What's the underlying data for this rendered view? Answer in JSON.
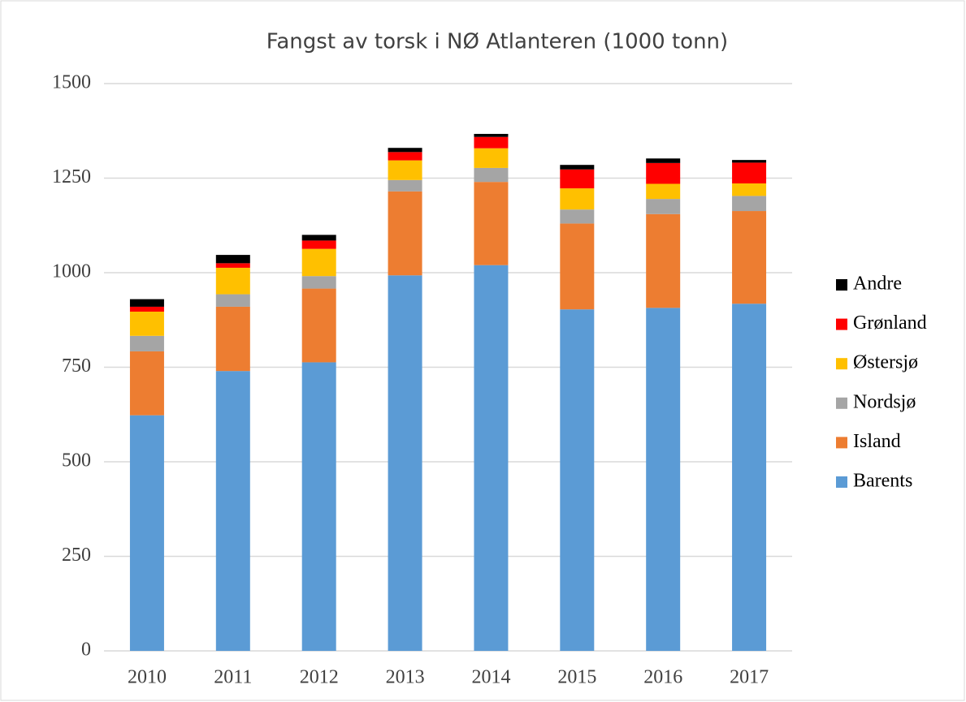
{
  "chart_data": {
    "type": "stacked_bar",
    "title": "Fangst av torsk i NØ Atlanteren (1000 tonn)",
    "categories": [
      "2010",
      "2011",
      "2012",
      "2013",
      "2014",
      "2015",
      "2016",
      "2017"
    ],
    "series": [
      {
        "name": "Barents",
        "color": "#5b9bd5",
        "values": [
          623,
          740,
          763,
          993,
          1020,
          903,
          907,
          918
        ]
      },
      {
        "name": "Island",
        "color": "#ed7d31",
        "values": [
          169,
          170,
          195,
          222,
          220,
          227,
          248,
          245
        ]
      },
      {
        "name": "Nordsjø",
        "color": "#a5a5a5",
        "values": [
          41,
          33,
          33,
          30,
          37,
          37,
          40,
          40
        ]
      },
      {
        "name": "Østersjø",
        "color": "#ffc000",
        "values": [
          64,
          70,
          72,
          52,
          52,
          56,
          40,
          33
        ]
      },
      {
        "name": "Grønland",
        "color": "#ff0000",
        "values": [
          13,
          12,
          22,
          22,
          30,
          50,
          55,
          55
        ]
      },
      {
        "name": "Andre",
        "color": "#000000",
        "values": [
          20,
          22,
          15,
          11,
          8,
          12,
          12,
          7
        ]
      }
    ],
    "ylim": [
      0,
      1500
    ],
    "yticks": [
      0,
      250,
      500,
      750,
      1000,
      1250,
      1500
    ],
    "grid": true,
    "legend": "right"
  }
}
